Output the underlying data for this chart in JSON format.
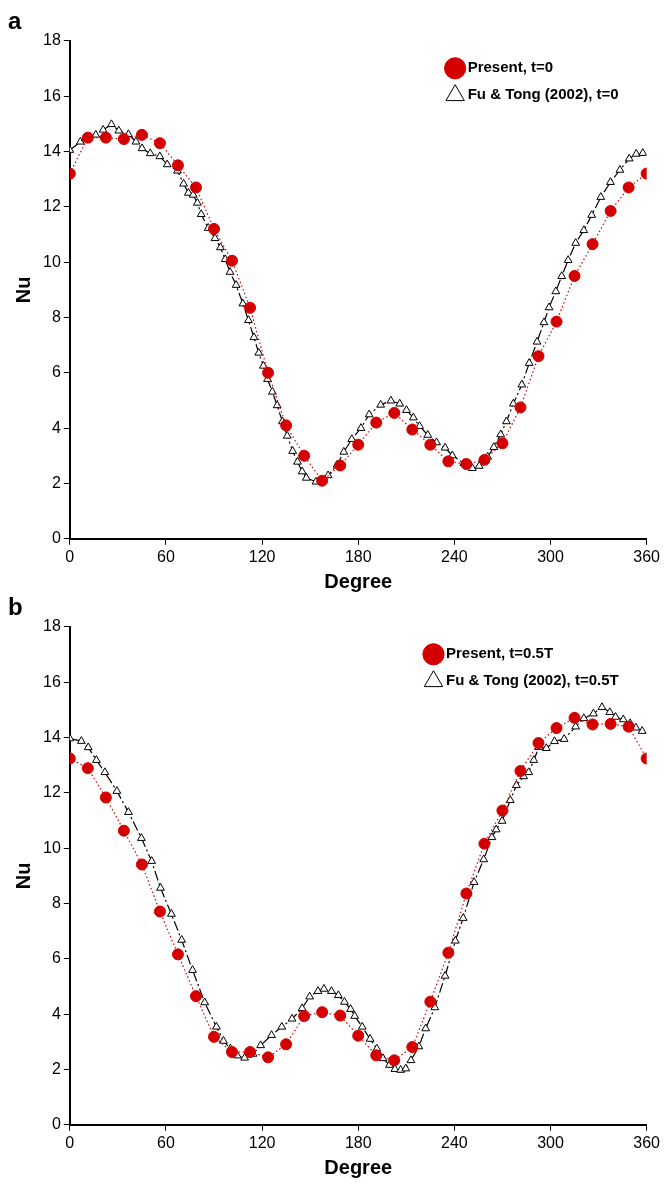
{
  "chart_data": [
    {
      "type": "line",
      "title": "a",
      "xlabel": "Degree",
      "ylabel": "Nu",
      "xlim": [
        0,
        360
      ],
      "xticks": [
        0,
        60,
        120,
        180,
        240,
        300,
        360
      ],
      "ylim": [
        0,
        18
      ],
      "yticks": [
        0,
        2,
        4,
        6,
        8,
        10,
        12,
        14,
        16,
        18
      ],
      "grid": false,
      "legend": "top right",
      "series": [
        {
          "name": "Present, t=0",
          "color": "#d40000",
          "marker": "circle",
          "line_style": "dotted",
          "x": [
            0,
            11.25,
            22.5,
            33.75,
            45,
            56.25,
            67.5,
            78.75,
            90,
            101.25,
            112.5,
            123.75,
            135,
            146.25,
            157.5,
            168.75,
            180,
            191.25,
            202.5,
            213.75,
            225,
            236.25,
            247.5,
            258.75,
            270,
            281.25,
            292.5,
            303.75,
            315,
            326.25,
            337.5,
            348.75,
            360
          ],
          "values": [
            13.2,
            14.5,
            14.5,
            14.45,
            14.6,
            14.3,
            13.5,
            12.7,
            11.2,
            10.05,
            8.35,
            6.0,
            4.1,
            3.0,
            2.1,
            2.65,
            3.4,
            4.2,
            4.55,
            3.95,
            3.4,
            2.8,
            2.7,
            2.85,
            3.45,
            4.75,
            6.6,
            7.85,
            9.5,
            10.65,
            11.85,
            12.7,
            13.2
          ]
        },
        {
          "name": "Fu & Tong (2002), t=0",
          "color": "#000000",
          "marker": "triangle",
          "line_style": "dashdot",
          "x": [
            0,
            6.6,
            9.8,
            16.2,
            20.8,
            26,
            30.6,
            36.6,
            41.3,
            45.1,
            50.2,
            56.2,
            60.8,
            67.2,
            71,
            74,
            77,
            79.6,
            82,
            86.4,
            90.6,
            94,
            97,
            100,
            103.8,
            108,
            111.5,
            114.9,
            117.9,
            120.8,
            123.4,
            126.4,
            129.4,
            132.7,
            135.7,
            139.1,
            142.1,
            145,
            147.6,
            153.6,
            161.2,
            166.8,
            171,
            176,
            181.7,
            186.8,
            194,
            200.4,
            205.9,
            210.1,
            214.4,
            218.3,
            223.4,
            228.9,
            234.2,
            238.7,
            245.9,
            251.2,
            255.5,
            260.8,
            264.6,
            268.9,
            272.5,
            276.8,
            282.1,
            286.7,
            291.6,
            295.9,
            299.1,
            303.3,
            307,
            311,
            315.7,
            320.8,
            325.7,
            331.4,
            337.4,
            343.3,
            349.1,
            353.5,
            357.6
          ],
          "values": [
            14.05,
            14.35,
            14.46,
            14.6,
            14.78,
            14.98,
            14.75,
            14.62,
            14.35,
            14.11,
            13.93,
            13.82,
            13.53,
            13.3,
            12.83,
            12.5,
            12.43,
            12.14,
            11.73,
            11.23,
            10.86,
            10.53,
            10.1,
            9.64,
            9.17,
            8.5,
            7.9,
            7.28,
            6.72,
            6.25,
            5.77,
            5.31,
            4.82,
            4.24,
            3.72,
            3.17,
            2.78,
            2.43,
            2.2,
            2.06,
            2.29,
            2.67,
            3.14,
            3.6,
            4.0,
            4.49,
            4.84,
            4.99,
            4.88,
            4.65,
            4.38,
            4.07,
            3.75,
            3.48,
            3.29,
            3.01,
            2.73,
            2.55,
            2.63,
            2.96,
            3.31,
            3.77,
            4.24,
            4.88,
            5.57,
            6.35,
            7.12,
            7.82,
            8.36,
            8.94,
            9.49,
            10.07,
            10.69,
            11.15,
            11.7,
            12.35,
            12.89,
            13.33,
            13.74,
            13.91,
            13.94
          ]
        }
      ]
    },
    {
      "type": "line",
      "title": "b",
      "xlabel": "Degree",
      "ylabel": "Nu",
      "xlim": [
        0,
        360
      ],
      "xticks": [
        0,
        60,
        120,
        180,
        240,
        300,
        360
      ],
      "ylim": [
        0,
        18
      ],
      "yticks": [
        0,
        2,
        4,
        6,
        8,
        10,
        12,
        14,
        16,
        18
      ],
      "grid": false,
      "legend": "top right",
      "series": [
        {
          "name": "Present, t=0.5T",
          "color": "#d40000",
          "marker": "circle",
          "line_style": "dotted",
          "x": [
            0,
            11.25,
            22.5,
            33.75,
            45,
            56.25,
            67.5,
            78.75,
            90,
            101.25,
            112.5,
            123.75,
            135,
            146.25,
            157.5,
            168.75,
            180,
            191.25,
            202.5,
            213.75,
            225,
            236.25,
            247.5,
            258.75,
            270,
            281.25,
            292.5,
            303.75,
            315,
            326.25,
            337.5,
            348.75,
            360
          ],
          "values": [
            13.24,
            12.89,
            11.83,
            10.63,
            9.41,
            7.71,
            6.16,
            4.65,
            3.18,
            2.63,
            2.63,
            2.44,
            2.91,
            3.93,
            4.07,
            3.95,
            3.22,
            2.51,
            2.33,
            2.81,
            4.45,
            6.22,
            8.36,
            10.16,
            11.36,
            12.79,
            13.8,
            14.34,
            14.71,
            14.47,
            14.49,
            14.39,
            13.24
          ]
        },
        {
          "name": "Fu & Tong (2002), t=0.5T",
          "color": "#000000",
          "marker": "triangle",
          "line_style": "dashdot",
          "x": [
            0,
            7.2,
            11.5,
            16.6,
            21.9,
            29.4,
            36.6,
            44.7,
            51.1,
            56.6,
            63.4,
            69.8,
            76.6,
            84.2,
            91.5,
            95.9,
            100.2,
            104.5,
            109.1,
            114.4,
            119.1,
            125.9,
            132.3,
            138.7,
            145,
            149.7,
            154.9,
            158.6,
            163.3,
            167.6,
            171.4,
            175.2,
            177.8,
            182.5,
            187.4,
            191.6,
            195.5,
            199.5,
            202.9,
            206.5,
            209.7,
            212.9,
            217.8,
            222.1,
            227.8,
            234.2,
            240.6,
            245.5,
            252.3,
            258.3,
            263.4,
            266.1,
            269.8,
            274.9,
            278.7,
            283.2,
            286.4,
            289.6,
            292.8,
            297.4,
            302.5,
            308.5,
            315.7,
            320.8,
            326.8,
            332.1,
            337,
            340.6,
            345.4,
            349.7,
            353.3,
            357.2
          ],
          "values": [
            13.96,
            13.87,
            13.64,
            13.18,
            12.74,
            12.06,
            11.3,
            10.36,
            9.53,
            8.56,
            7.62,
            6.68,
            5.59,
            4.42,
            3.54,
            3.03,
            2.75,
            2.5,
            2.42,
            2.56,
            2.87,
            3.24,
            3.54,
            3.83,
            4.21,
            4.63,
            4.83,
            4.91,
            4.83,
            4.68,
            4.44,
            4.18,
            3.93,
            3.54,
            3.1,
            2.75,
            2.4,
            2.16,
            2.01,
            1.98,
            2.03,
            2.33,
            2.83,
            3.48,
            4.24,
            5.38,
            6.65,
            7.47,
            8.77,
            9.59,
            10.39,
            10.67,
            10.98,
            11.73,
            12.27,
            12.59,
            12.74,
            13.18,
            13.65,
            13.61,
            13.86,
            13.94,
            14.39,
            14.69,
            14.86,
            15.09,
            14.91,
            14.74,
            14.65,
            14.51,
            14.35,
            14.23
          ]
        }
      ]
    }
  ]
}
